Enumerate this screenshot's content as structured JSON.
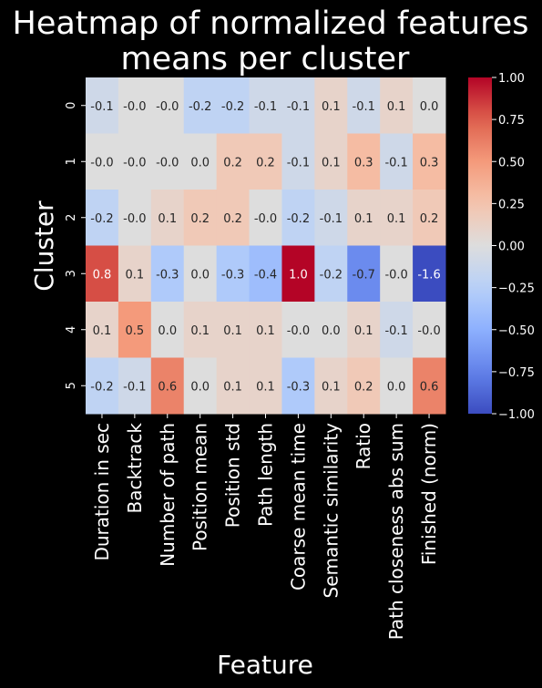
{
  "chart_data": {
    "type": "heatmap",
    "title_lines": [
      "Heatmap of normalized features",
      "means per cluster"
    ],
    "xlabel": "Feature",
    "ylabel": "Cluster",
    "columns": [
      "Duration in sec",
      "Backtrack",
      "Number of path",
      "Position mean",
      "Position std",
      "Path length",
      "Coarse mean time",
      "Semantic similarity",
      "Ratio",
      "Path closeness abs sum",
      "Finished (norm)"
    ],
    "rows": [
      "0",
      "1",
      "2",
      "3",
      "4",
      "5"
    ],
    "values": [
      [
        -0.1,
        -0.0,
        -0.0,
        -0.2,
        -0.2,
        -0.1,
        -0.1,
        0.1,
        -0.1,
        0.1,
        0.0
      ],
      [
        -0.0,
        -0.0,
        -0.0,
        0.0,
        0.2,
        0.2,
        -0.1,
        0.1,
        0.3,
        -0.1,
        0.3
      ],
      [
        -0.2,
        -0.0,
        0.1,
        0.2,
        0.2,
        -0.0,
        -0.2,
        -0.1,
        0.1,
        0.1,
        0.2
      ],
      [
        0.8,
        0.1,
        -0.3,
        0.0,
        -0.3,
        -0.4,
        1.0,
        -0.2,
        -0.7,
        -0.0,
        -1.6
      ],
      [
        0.1,
        0.5,
        0.0,
        0.1,
        0.1,
        0.1,
        -0.0,
        0.0,
        0.1,
        -0.1,
        -0.0
      ],
      [
        -0.2,
        -0.1,
        0.6,
        0.0,
        0.1,
        0.1,
        -0.3,
        0.1,
        0.2,
        0.0,
        0.6
      ]
    ],
    "labels": [
      [
        "-0.1",
        "-0.0",
        "-0.0",
        "-0.2",
        "-0.2",
        "-0.1",
        "-0.1",
        "0.1",
        "-0.1",
        "0.1",
        "0.0"
      ],
      [
        "-0.0",
        "-0.0",
        "-0.0",
        "0.0",
        "0.2",
        "0.2",
        "-0.1",
        "0.1",
        "0.3",
        "-0.1",
        "0.3"
      ],
      [
        "-0.2",
        "-0.0",
        "0.1",
        "0.2",
        "0.2",
        "-0.0",
        "-0.2",
        "-0.1",
        "0.1",
        "0.1",
        "0.2"
      ],
      [
        "0.8",
        "0.1",
        "-0.3",
        "0.0",
        "-0.3",
        "-0.4",
        "1.0",
        "-0.2",
        "-0.7",
        "-0.0",
        "-1.6"
      ],
      [
        "0.1",
        "0.5",
        "0.0",
        "0.1",
        "0.1",
        "0.1",
        "-0.0",
        "0.0",
        "0.1",
        "-0.1",
        "-0.0"
      ],
      [
        "-0.2",
        "-0.1",
        "0.6",
        "0.0",
        "0.1",
        "0.1",
        "-0.3",
        "0.1",
        "0.2",
        "0.0",
        "0.6"
      ]
    ],
    "colormap": "coolwarm",
    "vmin": -1.0,
    "vmax": 1.0,
    "colorbar_ticks": [
      "1.00",
      "0.75",
      "0.50",
      "0.25",
      "0.00",
      "−0.25",
      "−0.50",
      "−0.75",
      "−1.00"
    ],
    "colorbar_tick_values": [
      1.0,
      0.75,
      0.5,
      0.25,
      0.0,
      -0.25,
      -0.5,
      -0.75,
      -1.0
    ]
  }
}
